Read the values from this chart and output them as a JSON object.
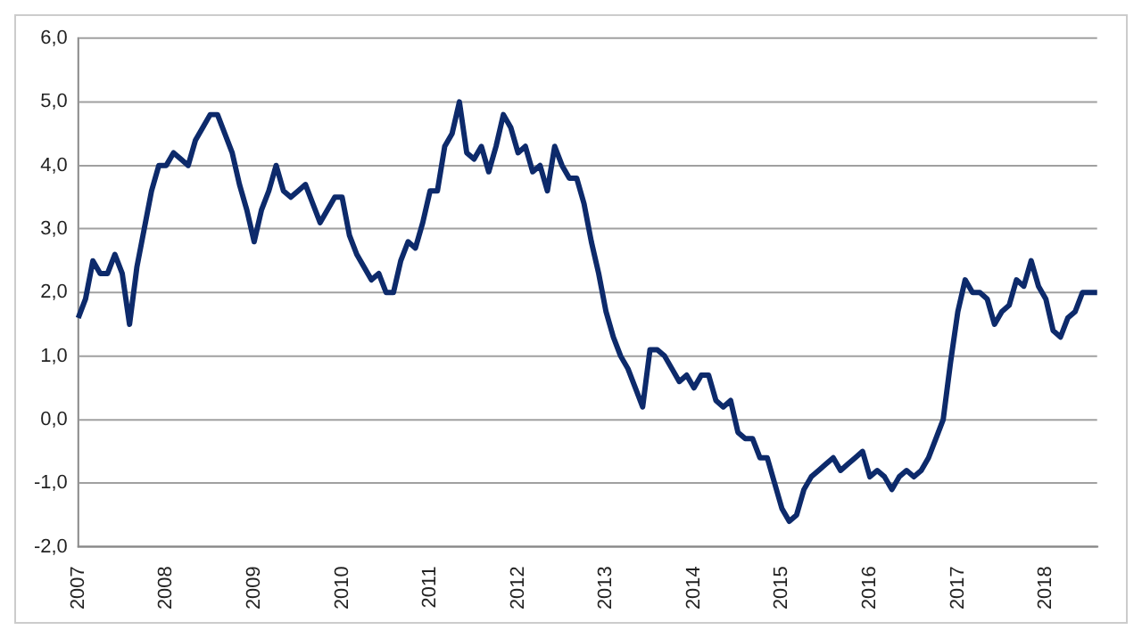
{
  "chart_data": {
    "type": "line",
    "categories": [
      "2007",
      null,
      null,
      null,
      null,
      null,
      null,
      null,
      null,
      null,
      null,
      null,
      "2008",
      null,
      null,
      null,
      null,
      null,
      null,
      null,
      null,
      null,
      null,
      null,
      "2009",
      null,
      null,
      null,
      null,
      null,
      null,
      null,
      null,
      null,
      null,
      null,
      "2010",
      null,
      null,
      null,
      null,
      null,
      null,
      null,
      null,
      null,
      null,
      null,
      "2011",
      null,
      null,
      null,
      null,
      null,
      null,
      null,
      null,
      null,
      null,
      null,
      "2012",
      null,
      null,
      null,
      null,
      null,
      null,
      null,
      null,
      null,
      null,
      null,
      "2013",
      null,
      null,
      null,
      null,
      null,
      null,
      null,
      null,
      null,
      null,
      null,
      "2014",
      null,
      null,
      null,
      null,
      null,
      null,
      null,
      null,
      null,
      null,
      null,
      "2015",
      null,
      null,
      null,
      null,
      null,
      null,
      null,
      null,
      null,
      null,
      null,
      "2016",
      null,
      null,
      null,
      null,
      null,
      null,
      null,
      null,
      null,
      null,
      null,
      "2017",
      null,
      null,
      null,
      null,
      null,
      null,
      null,
      null,
      null,
      null,
      null,
      "2018",
      null,
      null,
      null,
      null,
      null,
      null,
      null
    ],
    "series": [
      {
        "color": "#0d2a6b",
        "values": [
          1.6,
          1.9,
          2.5,
          2.3,
          2.3,
          2.6,
          2.3,
          1.5,
          2.4,
          3.0,
          3.6,
          4.0,
          4.0,
          4.2,
          4.1,
          4.0,
          4.4,
          4.6,
          4.8,
          4.8,
          4.5,
          4.2,
          3.7,
          3.3,
          2.8,
          3.3,
          3.6,
          4.0,
          3.6,
          3.5,
          3.6,
          3.7,
          3.4,
          3.1,
          3.3,
          3.5,
          3.5,
          2.9,
          2.6,
          2.4,
          2.2,
          2.3,
          2.0,
          2.0,
          2.5,
          2.8,
          2.7,
          3.1,
          3.6,
          3.6,
          4.3,
          4.5,
          5.0,
          4.2,
          4.1,
          4.3,
          3.9,
          4.3,
          4.8,
          4.6,
          4.2,
          4.3,
          3.9,
          4.0,
          3.6,
          4.3,
          4.0,
          3.8,
          3.8,
          3.4,
          2.8,
          2.3,
          1.7,
          1.3,
          1.0,
          0.8,
          0.5,
          0.2,
          1.1,
          1.1,
          1.0,
          0.8,
          0.6,
          0.7,
          0.5,
          0.7,
          0.7,
          0.3,
          0.2,
          0.3,
          -0.2,
          -0.3,
          -0.3,
          -0.6,
          -0.6,
          -1.0,
          -1.4,
          -1.6,
          -1.5,
          -1.1,
          -0.9,
          -0.8,
          -0.7,
          -0.6,
          -0.8,
          -0.7,
          -0.6,
          -0.5,
          -0.9,
          -0.8,
          -0.9,
          -1.1,
          -0.9,
          -0.8,
          -0.9,
          -0.8,
          -0.6,
          -0.3,
          0.0,
          0.9,
          1.7,
          2.2,
          2.0,
          2.0,
          1.9,
          1.5,
          1.7,
          1.8,
          2.2,
          2.1,
          2.5,
          2.1,
          1.9,
          1.4,
          1.3,
          1.6,
          1.7,
          2.0,
          2.0,
          2.0
        ]
      }
    ],
    "ylim": [
      -2,
      6
    ],
    "yticks": [
      {
        "value": -2,
        "label": "-2,0"
      },
      {
        "value": -1,
        "label": "-1,0"
      },
      {
        "value": 0,
        "label": "0,0"
      },
      {
        "value": 1,
        "label": "1,0"
      },
      {
        "value": 2,
        "label": "2,0"
      },
      {
        "value": 3,
        "label": "3,0"
      },
      {
        "value": 4,
        "label": "4,0"
      },
      {
        "value": 5,
        "label": "5,0"
      },
      {
        "value": 6,
        "label": "6,0"
      }
    ],
    "grid": "y",
    "legend": false,
    "marker": "none",
    "line_style": "solid"
  }
}
